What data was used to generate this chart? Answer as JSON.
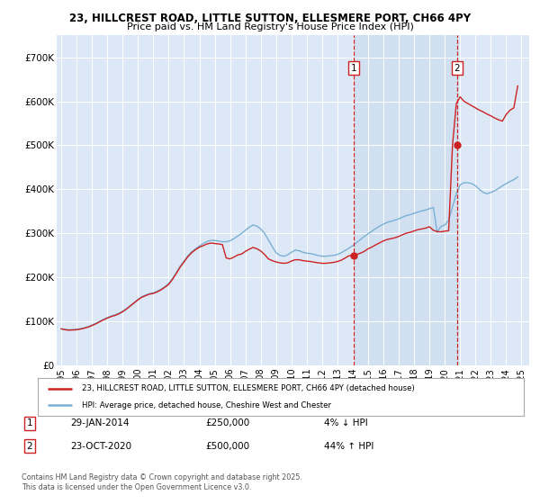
{
  "title_line1": "23, HILLCREST ROAD, LITTLE SUTTON, ELLESMERE PORT, CH66 4PY",
  "title_line2": "Price paid vs. HM Land Registry's House Price Index (HPI)",
  "background_color": "#ffffff",
  "plot_bg_color": "#dce8f5",
  "grid_color": "#ffffff",
  "hpi_color": "#7ab0d4",
  "price_color": "#cc2222",
  "shade_color": "#dce8f8",
  "ylim": [
    0,
    750000
  ],
  "yticks": [
    0,
    100000,
    200000,
    300000,
    400000,
    500000,
    600000,
    700000
  ],
  "ytick_labels": [
    "£0",
    "£100K",
    "£200K",
    "£300K",
    "£400K",
    "£500K",
    "£600K",
    "£700K"
  ],
  "sale1_date": "29-JAN-2014",
  "sale1_price": 250000,
  "sale1_pct": "4% ↓ HPI",
  "sale1_x": 2014.08,
  "sale2_date": "23-OCT-2020",
  "sale2_price": 500000,
  "sale2_pct": "44% ↑ HPI",
  "sale2_x": 2020.81,
  "legend_line1": "23, HILLCREST ROAD, LITTLE SUTTON, ELLESMERE PORT, CH66 4PY (detached house)",
  "legend_line2": "HPI: Average price, detached house, Cheshire West and Chester",
  "footer": "Contains HM Land Registry data © Crown copyright and database right 2025.\nThis data is licensed under the Open Government Licence v3.0.",
  "hpi_data_x": [
    1995.0,
    1995.25,
    1995.5,
    1995.75,
    1996.0,
    1996.25,
    1996.5,
    1996.75,
    1997.0,
    1997.25,
    1997.5,
    1997.75,
    1998.0,
    1998.25,
    1998.5,
    1998.75,
    1999.0,
    1999.25,
    1999.5,
    1999.75,
    2000.0,
    2000.25,
    2000.5,
    2000.75,
    2001.0,
    2001.25,
    2001.5,
    2001.75,
    2002.0,
    2002.25,
    2002.5,
    2002.75,
    2003.0,
    2003.25,
    2003.5,
    2003.75,
    2004.0,
    2004.25,
    2004.5,
    2004.75,
    2005.0,
    2005.25,
    2005.5,
    2005.75,
    2006.0,
    2006.25,
    2006.5,
    2006.75,
    2007.0,
    2007.25,
    2007.5,
    2007.75,
    2008.0,
    2008.25,
    2008.5,
    2008.75,
    2009.0,
    2009.25,
    2009.5,
    2009.75,
    2010.0,
    2010.25,
    2010.5,
    2010.75,
    2011.0,
    2011.25,
    2011.5,
    2011.75,
    2012.0,
    2012.25,
    2012.5,
    2012.75,
    2013.0,
    2013.25,
    2013.5,
    2013.75,
    2014.0,
    2014.25,
    2014.5,
    2014.75,
    2015.0,
    2015.25,
    2015.5,
    2015.75,
    2016.0,
    2016.25,
    2016.5,
    2016.75,
    2017.0,
    2017.25,
    2017.5,
    2017.75,
    2018.0,
    2018.25,
    2018.5,
    2018.75,
    2019.0,
    2019.25,
    2019.5,
    2019.75,
    2020.0,
    2020.25,
    2020.5,
    2020.75,
    2021.0,
    2021.25,
    2021.5,
    2021.75,
    2022.0,
    2022.25,
    2022.5,
    2022.75,
    2023.0,
    2023.25,
    2023.5,
    2023.75,
    2024.0,
    2024.25,
    2024.5,
    2024.75
  ],
  "hpi_data_y": [
    83000,
    82000,
    81000,
    81500,
    82000,
    83500,
    85500,
    88000,
    91500,
    95500,
    100000,
    104500,
    108500,
    112000,
    115000,
    118500,
    123000,
    129000,
    136000,
    143000,
    150000,
    156000,
    160000,
    163000,
    165000,
    168500,
    173000,
    179000,
    186000,
    197500,
    211000,
    225500,
    237000,
    249000,
    258500,
    265000,
    271000,
    277000,
    281500,
    284000,
    284000,
    282500,
    281000,
    281000,
    283000,
    288000,
    294000,
    300000,
    307000,
    314000,
    319000,
    316500,
    310000,
    300000,
    285000,
    270000,
    256000,
    250000,
    248000,
    251000,
    257000,
    262000,
    260500,
    257000,
    255000,
    254000,
    252000,
    249500,
    248000,
    248000,
    249000,
    250000,
    252000,
    256000,
    261000,
    266500,
    272000,
    279000,
    286000,
    293000,
    299000,
    305000,
    311000,
    316500,
    321000,
    325000,
    327500,
    330000,
    333000,
    337000,
    340500,
    342500,
    345500,
    348500,
    351000,
    353000,
    356000,
    359000,
    303000,
    316000,
    319000,
    330000,
    360000,
    390000,
    410000,
    415000,
    415000,
    413000,
    408000,
    400000,
    393000,
    390000,
    393000,
    397000,
    402000,
    408000,
    413000,
    418000,
    422000,
    428000
  ],
  "price_data_x": [
    1995.0,
    1995.25,
    1995.5,
    1995.75,
    1996.0,
    1996.25,
    1996.5,
    1996.75,
    1997.0,
    1997.25,
    1997.5,
    1997.75,
    1998.0,
    1998.25,
    1998.5,
    1998.75,
    1999.0,
    1999.25,
    1999.5,
    1999.75,
    2000.0,
    2000.25,
    2000.5,
    2000.75,
    2001.0,
    2001.25,
    2001.5,
    2001.75,
    2002.0,
    2002.25,
    2002.5,
    2002.75,
    2003.0,
    2003.25,
    2003.5,
    2003.75,
    2004.0,
    2004.25,
    2004.5,
    2004.75,
    2005.0,
    2005.25,
    2005.5,
    2005.75,
    2006.0,
    2006.25,
    2006.5,
    2006.75,
    2007.0,
    2007.25,
    2007.5,
    2007.75,
    2008.0,
    2008.25,
    2008.5,
    2008.75,
    2009.0,
    2009.25,
    2009.5,
    2009.75,
    2010.0,
    2010.25,
    2010.5,
    2010.75,
    2011.0,
    2011.25,
    2011.5,
    2011.75,
    2012.0,
    2012.25,
    2012.5,
    2012.75,
    2013.0,
    2013.25,
    2013.5,
    2013.75,
    2014.0,
    2014.25,
    2014.5,
    2014.75,
    2015.0,
    2015.25,
    2015.5,
    2015.75,
    2016.0,
    2016.25,
    2016.5,
    2016.75,
    2017.0,
    2017.25,
    2017.5,
    2017.75,
    2018.0,
    2018.25,
    2018.5,
    2018.75,
    2019.0,
    2019.25,
    2019.5,
    2019.75,
    2020.0,
    2020.25,
    2020.5,
    2020.75,
    2021.0,
    2021.25,
    2021.5,
    2021.75,
    2022.0,
    2022.25,
    2022.5,
    2022.75,
    2023.0,
    2023.25,
    2023.5,
    2023.75,
    2024.0,
    2024.25,
    2024.5,
    2024.75
  ],
  "price_data_y": [
    83000,
    81000,
    80000,
    80500,
    81000,
    82500,
    84500,
    87000,
    90500,
    94500,
    99000,
    103500,
    107500,
    111000,
    113500,
    117000,
    122000,
    128000,
    135000,
    142000,
    149000,
    155000,
    158500,
    162000,
    163500,
    167000,
    171500,
    177500,
    184000,
    195500,
    209000,
    223500,
    235000,
    247000,
    256000,
    263000,
    268500,
    272000,
    276000,
    278000,
    277000,
    276000,
    274500,
    244000,
    242000,
    246000,
    251000,
    253000,
    259000,
    264000,
    268000,
    265000,
    260000,
    252000,
    242000,
    238000,
    235000,
    233000,
    232000,
    233000,
    237000,
    240000,
    240000,
    238000,
    237000,
    236000,
    234500,
    233000,
    232000,
    232000,
    233000,
    234000,
    236000,
    239000,
    244000,
    249000,
    250000,
    252000,
    255000,
    259000,
    265000,
    269000,
    274000,
    278500,
    283000,
    286000,
    288000,
    290000,
    293000,
    297000,
    300500,
    302500,
    305500,
    308500,
    310000,
    312000,
    315000,
    307000,
    304000,
    303500,
    305000,
    306000,
    500000,
    595000,
    610000,
    600000,
    595000,
    590000,
    585000,
    580000,
    576000,
    571000,
    567000,
    562000,
    558000,
    555000,
    570000,
    580000,
    585000,
    635000
  ]
}
